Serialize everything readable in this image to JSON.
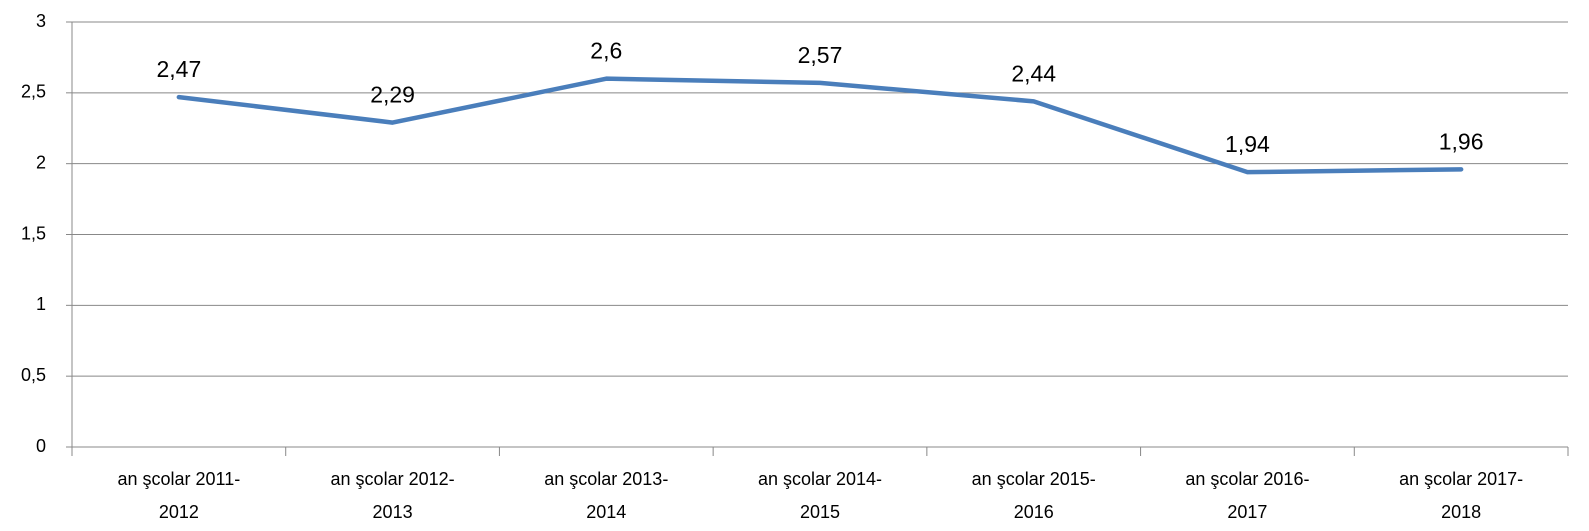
{
  "chart_data": {
    "type": "line",
    "categories": [
      "an şcolar 2011-2012",
      "an şcolar 2012-2013",
      "an şcolar 2013-2014",
      "an şcolar 2014-2015",
      "an şcolar 2015-2016",
      "an şcolar 2016-2017",
      "an şcolar 2017-2018"
    ],
    "series": [
      {
        "name": null,
        "color": "#4a7ebb",
        "values": [
          2.47,
          2.29,
          2.6,
          2.57,
          2.44,
          1.94,
          1.96
        ],
        "value_labels": [
          "2,47",
          "2,29",
          "2,6",
          "2,57",
          "2,44",
          "1,94",
          "1,96"
        ]
      }
    ],
    "ylim": [
      0,
      3
    ],
    "yticks": [
      0,
      {
        "value": 0.5,
        "label": "0,5"
      },
      1,
      {
        "value": 1.5,
        "label": "1,5"
      },
      2,
      {
        "value": 2.5,
        "label": "2,5"
      },
      3
    ],
    "grid": true
  }
}
